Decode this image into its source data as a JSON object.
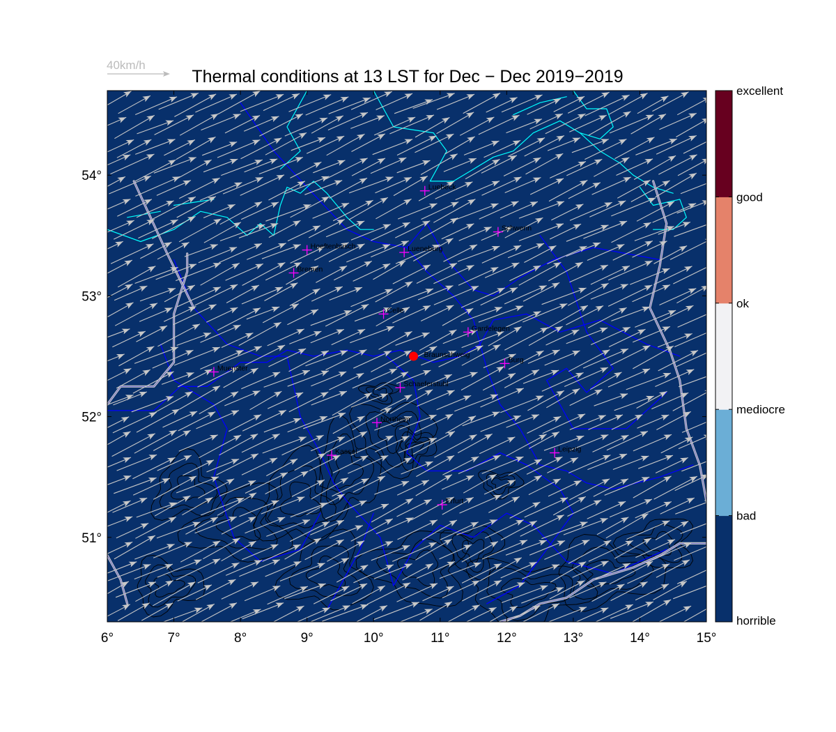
{
  "title": "Thermal conditions at 13 LST for Dec − Dec  2019−2019",
  "wind_scale": {
    "label": "40km/h",
    "speed_kmh": 40
  },
  "map": {
    "lon_range": [
      6,
      15
    ],
    "lat_range": [
      50.3,
      54.7
    ],
    "xticks": [
      {
        "value": 6,
        "label": "6°"
      },
      {
        "value": 7,
        "label": "7°"
      },
      {
        "value": 8,
        "label": "8°"
      },
      {
        "value": 9,
        "label": "9°"
      },
      {
        "value": 10,
        "label": "10°"
      },
      {
        "value": 11,
        "label": "11°"
      },
      {
        "value": 12,
        "label": "12°"
      },
      {
        "value": 13,
        "label": "13°"
      },
      {
        "value": 14,
        "label": "14°"
      },
      {
        "value": 15,
        "label": "15°"
      }
    ],
    "yticks": [
      {
        "value": 51,
        "label": "51°"
      },
      {
        "value": 52,
        "label": "52°"
      },
      {
        "value": 53,
        "label": "53°"
      },
      {
        "value": 54,
        "label": "54°"
      }
    ],
    "background_color": "#08306b",
    "grid": false
  },
  "colorbar": {
    "placement": "right",
    "classes": [
      {
        "label": "horrible",
        "color": "#08306b"
      },
      {
        "label": "bad",
        "color": "#6baed6"
      },
      {
        "label": "mediocre",
        "color": "#f2f2f4"
      },
      {
        "label": "ok",
        "color": "#e5826a"
      },
      {
        "label": "good",
        "color": "#67001f"
      },
      {
        "label": "excellent",
        "color": ""
      }
    ]
  },
  "highlight_point": {
    "name": "Braunschweig",
    "lon": 10.6,
    "lat": 52.5,
    "color": "#ff0000"
  },
  "stations": [
    {
      "name": "Luebeck",
      "lon": 10.77,
      "lat": 53.87
    },
    {
      "name": "Schwerin",
      "lon": 11.87,
      "lat": 53.53
    },
    {
      "name": "Hoeftenbusch",
      "lon": 9.0,
      "lat": 53.38
    },
    {
      "name": "Lueneburg",
      "lon": 10.46,
      "lat": 53.36
    },
    {
      "name": "Bremen",
      "lon": 8.8,
      "lat": 53.19
    },
    {
      "name": "Celle",
      "lon": 10.15,
      "lat": 52.85
    },
    {
      "name": "Gardelegen",
      "lon": 11.42,
      "lat": 52.7
    },
    {
      "name": "Burg",
      "lon": 11.97,
      "lat": 52.44
    },
    {
      "name": "Muenster",
      "lon": 7.6,
      "lat": 52.37
    },
    {
      "name": "Schaeferstuhl",
      "lon": 10.4,
      "lat": 52.24
    },
    {
      "name": "Northeim",
      "lon": 10.05,
      "lat": 51.95
    },
    {
      "name": "Kassel",
      "lon": 9.37,
      "lat": 51.68
    },
    {
      "name": "Leipzig",
      "lon": 12.72,
      "lat": 51.7
    },
    {
      "name": "Erfurt",
      "lon": 11.03,
      "lat": 51.27
    }
  ],
  "wind": {
    "direction_deg_toward": 25,
    "speed_kmh_range": [
      32,
      46
    ],
    "color": "#c8c8c8"
  },
  "colors": {
    "coastline": "#00ffff",
    "state_borders": "#0000ff",
    "national_borders": "#c8c8c8",
    "contours": "#000000",
    "station_marker": "#ff00ff"
  }
}
